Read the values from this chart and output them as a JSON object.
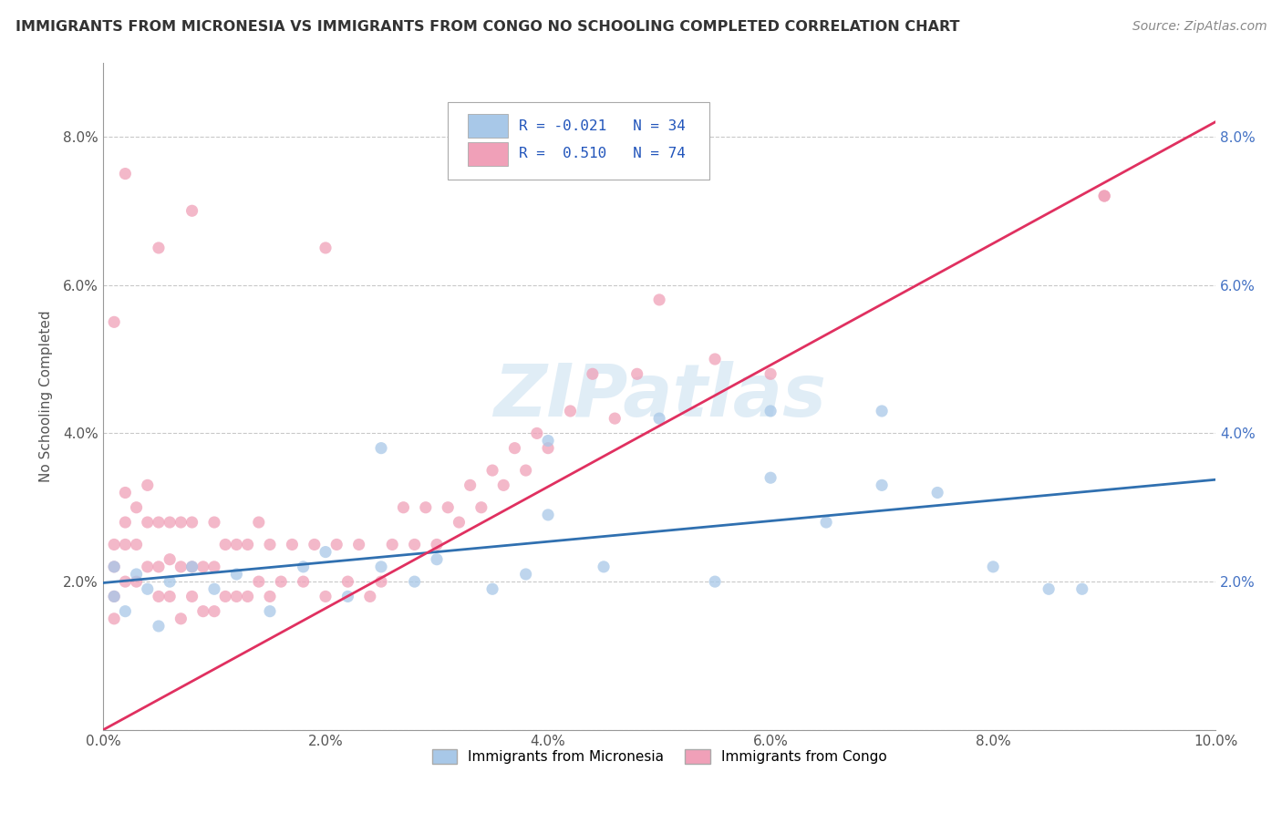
{
  "title": "IMMIGRANTS FROM MICRONESIA VS IMMIGRANTS FROM CONGO NO SCHOOLING COMPLETED CORRELATION CHART",
  "source": "Source: ZipAtlas.com",
  "ylabel": "No Schooling Completed",
  "xlim": [
    0.0,
    0.1
  ],
  "ylim": [
    0.0,
    0.09
  ],
  "xticks": [
    0.0,
    0.02,
    0.04,
    0.06,
    0.08,
    0.1
  ],
  "yticks": [
    0.0,
    0.02,
    0.04,
    0.06,
    0.08
  ],
  "xtick_labels": [
    "0.0%",
    "2.0%",
    "4.0%",
    "6.0%",
    "8.0%",
    "10.0%"
  ],
  "ytick_labels_left": [
    "",
    "2.0%",
    "4.0%",
    "6.0%",
    "8.0%"
  ],
  "ytick_labels_right": [
    "",
    "2.0%",
    "4.0%",
    "6.0%",
    "8.0%"
  ],
  "micronesia_color": "#a8c8e8",
  "congo_color": "#f0a0b8",
  "micronesia_line_color": "#3070b0",
  "congo_line_color": "#e03060",
  "watermark": "ZIPatlas",
  "background_color": "#ffffff",
  "grid_color": "#bbbbbb",
  "micronesia_x": [
    0.001,
    0.001,
    0.002,
    0.003,
    0.004,
    0.005,
    0.006,
    0.008,
    0.01,
    0.012,
    0.015,
    0.018,
    0.02,
    0.022,
    0.025,
    0.028,
    0.03,
    0.035,
    0.038,
    0.04,
    0.045,
    0.05,
    0.055,
    0.06,
    0.065,
    0.07,
    0.075,
    0.08,
    0.085,
    0.088,
    0.06,
    0.025,
    0.04,
    0.07
  ],
  "micronesia_y": [
    0.018,
    0.022,
    0.016,
    0.021,
    0.019,
    0.014,
    0.02,
    0.022,
    0.019,
    0.021,
    0.016,
    0.022,
    0.024,
    0.018,
    0.022,
    0.02,
    0.023,
    0.019,
    0.021,
    0.039,
    0.022,
    0.042,
    0.02,
    0.034,
    0.028,
    0.043,
    0.032,
    0.022,
    0.019,
    0.019,
    0.043,
    0.038,
    0.029,
    0.033
  ],
  "congo_x": [
    0.001,
    0.001,
    0.001,
    0.001,
    0.002,
    0.002,
    0.002,
    0.002,
    0.003,
    0.003,
    0.003,
    0.004,
    0.004,
    0.004,
    0.005,
    0.005,
    0.005,
    0.006,
    0.006,
    0.006,
    0.007,
    0.007,
    0.007,
    0.008,
    0.008,
    0.008,
    0.009,
    0.009,
    0.01,
    0.01,
    0.01,
    0.011,
    0.011,
    0.012,
    0.012,
    0.013,
    0.013,
    0.014,
    0.014,
    0.015,
    0.015,
    0.016,
    0.017,
    0.018,
    0.019,
    0.02,
    0.021,
    0.022,
    0.023,
    0.024,
    0.025,
    0.026,
    0.027,
    0.028,
    0.029,
    0.03,
    0.031,
    0.032,
    0.033,
    0.034,
    0.035,
    0.036,
    0.037,
    0.038,
    0.039,
    0.04,
    0.042,
    0.044,
    0.046,
    0.048,
    0.05,
    0.055,
    0.06,
    0.09
  ],
  "congo_y": [
    0.015,
    0.018,
    0.022,
    0.025,
    0.02,
    0.025,
    0.028,
    0.032,
    0.02,
    0.025,
    0.03,
    0.022,
    0.028,
    0.033,
    0.018,
    0.022,
    0.028,
    0.018,
    0.023,
    0.028,
    0.015,
    0.022,
    0.028,
    0.018,
    0.022,
    0.028,
    0.016,
    0.022,
    0.016,
    0.022,
    0.028,
    0.018,
    0.025,
    0.018,
    0.025,
    0.018,
    0.025,
    0.02,
    0.028,
    0.018,
    0.025,
    0.02,
    0.025,
    0.02,
    0.025,
    0.018,
    0.025,
    0.02,
    0.025,
    0.018,
    0.02,
    0.025,
    0.03,
    0.025,
    0.03,
    0.025,
    0.03,
    0.028,
    0.033,
    0.03,
    0.035,
    0.033,
    0.038,
    0.035,
    0.04,
    0.038,
    0.043,
    0.048,
    0.042,
    0.048,
    0.058,
    0.05,
    0.048,
    0.072
  ],
  "congo_outliers_x": [
    0.001,
    0.002,
    0.005,
    0.008,
    0.02,
    0.09
  ],
  "congo_outliers_y": [
    0.055,
    0.075,
    0.065,
    0.07,
    0.065,
    0.072
  ]
}
